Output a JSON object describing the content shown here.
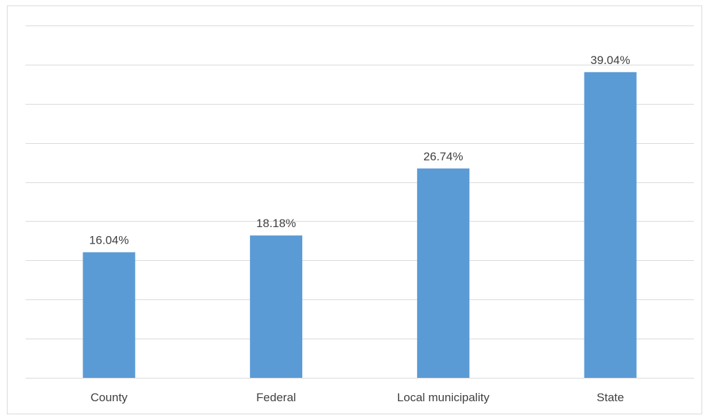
{
  "chart_data": {
    "type": "bar",
    "categories": [
      "County",
      "Federal",
      "Local municipality",
      "State"
    ],
    "values": [
      16.04,
      18.18,
      26.74,
      39.04
    ],
    "value_labels": [
      "16.04%",
      "18.18%",
      "26.74%",
      "39.04%"
    ],
    "value_suffix": "%",
    "title": "",
    "xlabel": "",
    "ylabel": "",
    "ylim": [
      0,
      45
    ],
    "gridline_step": 5,
    "y_tick_labels_shown": false,
    "grid": true,
    "legend": "none",
    "colors": {
      "bar": "#5b9bd5",
      "grid": "#d9d9d9",
      "text": "#404040",
      "border": "#d9d9d9"
    }
  }
}
